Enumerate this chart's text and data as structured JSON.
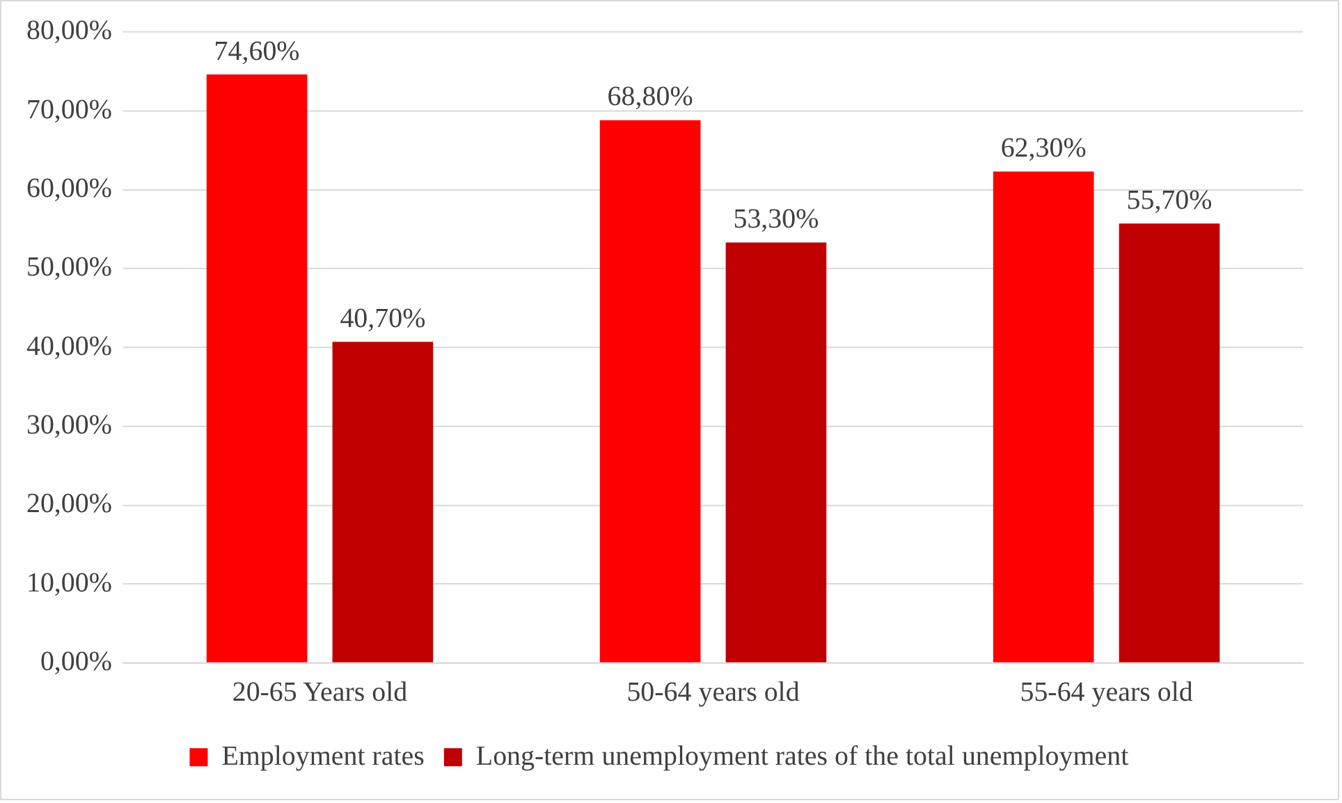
{
  "chart_data": {
    "type": "bar",
    "categories": [
      "20-65 Years old",
      "50-64 years old",
      "55-64 years old"
    ],
    "series": [
      {
        "name": "Employment rates",
        "color": "#ff0000",
        "values": [
          74.6,
          68.8,
          62.3
        ],
        "value_labels": [
          "74,60%",
          "68,80%",
          "62,30%"
        ]
      },
      {
        "name": "Long-term unemployment rates of the total unemployment",
        "color": "#c00000",
        "values": [
          40.7,
          53.3,
          55.7
        ],
        "value_labels": [
          "40,70%",
          "53,30%",
          "55,70%"
        ]
      }
    ],
    "ylim": [
      0,
      80
    ],
    "yticks": [
      {
        "value": 0,
        "label": "0,00%"
      },
      {
        "value": 10,
        "label": "10,00%"
      },
      {
        "value": 20,
        "label": "20,00%"
      },
      {
        "value": 30,
        "label": "30,00%"
      },
      {
        "value": 40,
        "label": "40,00%"
      },
      {
        "value": 50,
        "label": "50,00%"
      },
      {
        "value": 60,
        "label": "60,00%"
      },
      {
        "value": 70,
        "label": "70,00%"
      },
      {
        "value": 80,
        "label": "80,00%"
      }
    ],
    "grid": "y",
    "legend": "bottom"
  }
}
